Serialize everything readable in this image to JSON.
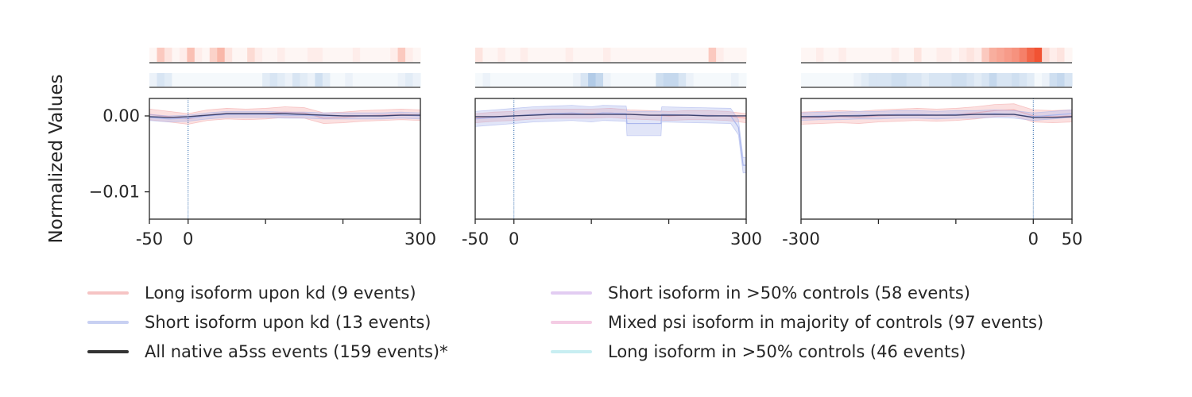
{
  "chart_data": {
    "type": "line",
    "ylabel": "Normalized Values",
    "y_tick_labels": [
      "0.00",
      "−0.01"
    ],
    "y_ticks": [
      0.0,
      -0.01
    ],
    "ylim": [
      -0.0136,
      0.0023
    ],
    "panels": [
      {
        "xlim": [
          -50,
          300
        ],
        "x_tick_labels": [
          "-50",
          "0",
          "300"
        ],
        "x_ticks_labeled": [
          -50,
          0,
          300
        ],
        "x_ticks_minor": [
          100,
          200
        ],
        "vline_x": 0,
        "heatmap_top": [
          0.05,
          0.3,
          0.15,
          0.05,
          0.1,
          0.35,
          0.1,
          0.05,
          0.25,
          0.4,
          0.15,
          0.05,
          0.05,
          0.2,
          0.1,
          0.05,
          0.05,
          0.1,
          0.05,
          0.05,
          0.05,
          0.1,
          0.1,
          0.05,
          0.05,
          0.05,
          0.05,
          0.1,
          0.05,
          0.05,
          0.05,
          0.05,
          0.1,
          0.3,
          0.1,
          0.05
        ],
        "heatmap_bottom": [
          0.1,
          0.2,
          0.15,
          0.05,
          0.05,
          0.05,
          0.05,
          0.05,
          0.05,
          0.05,
          0.05,
          0.05,
          0.05,
          0.05,
          0.05,
          0.15,
          0.2,
          0.15,
          0.1,
          0.2,
          0.15,
          0.1,
          0.25,
          0.15,
          0.05,
          0.05,
          0.1,
          0.05,
          0.05,
          0.05,
          0.05,
          0.05,
          0.05,
          0.1,
          0.15,
          0.1
        ],
        "series": [
          {
            "name": "Long isoform upon kd (9 events)",
            "x": [
              -50,
              -25,
              0,
              25,
              50,
              75,
              100,
              125,
              150,
              175,
              200,
              225,
              250,
              275,
              300
            ],
            "y": [
              0.0002,
              -0.0001,
              -0.0004,
              0.0001,
              0.0003,
              0.0002,
              0.0003,
              0.0005,
              0.0004,
              -0.0003,
              -0.0002,
              0.0,
              0.0001,
              0.0002,
              0.0001
            ],
            "band": 0.0007
          },
          {
            "name": "Short isoform upon kd (13 events)",
            "x": [
              -50,
              -25,
              0,
              25,
              50,
              75,
              100,
              125,
              150,
              175,
              200,
              225,
              250,
              275,
              300
            ],
            "y": [
              -0.0002,
              -0.0004,
              -0.0003,
              0.0,
              0.0002,
              0.0002,
              0.0002,
              0.0001,
              0.0001,
              0.0,
              0.0,
              0.0,
              0.0,
              0.0001,
              0.0
            ],
            "band": 0.0004
          },
          {
            "name": "All native a5ss events (159 events)*",
            "x": [
              -50,
              -25,
              0,
              25,
              50,
              75,
              100,
              125,
              150,
              175,
              200,
              225,
              250,
              275,
              300
            ],
            "y": [
              -0.0001,
              -0.0002,
              -0.0001,
              0.0001,
              0.0003,
              0.0003,
              0.0003,
              0.0003,
              0.0002,
              0.0001,
              0.0,
              0.0,
              0.0,
              0.0001,
              0.0001
            ],
            "band": 0.0
          }
        ]
      },
      {
        "xlim": [
          -50,
          300
        ],
        "x_tick_labels": [
          "-50",
          "0",
          "300"
        ],
        "x_ticks_labeled": [
          -50,
          0,
          300
        ],
        "x_ticks_minor": [
          100,
          200
        ],
        "vline_x": 0,
        "heatmap_top": [
          0.15,
          0.05,
          0.05,
          0.1,
          0.05,
          0.05,
          0.1,
          0.05,
          0.05,
          0.05,
          0.05,
          0.05,
          0.1,
          0.05,
          0.05,
          0.05,
          0.05,
          0.1,
          0.05,
          0.05,
          0.05,
          0.05,
          0.05,
          0.05,
          0.05,
          0.05,
          0.05,
          0.05,
          0.05,
          0.05,
          0.05,
          0.3,
          0.1,
          0.05,
          0.05,
          0.05
        ],
        "heatmap_bottom": [
          0.05,
          0.1,
          0.05,
          0.05,
          0.05,
          0.05,
          0.05,
          0.05,
          0.05,
          0.05,
          0.05,
          0.05,
          0.05,
          0.1,
          0.2,
          0.4,
          0.3,
          0.1,
          0.05,
          0.05,
          0.05,
          0.05,
          0.05,
          0.05,
          0.25,
          0.3,
          0.3,
          0.2,
          0.1,
          0.05,
          0.05,
          0.05,
          0.05,
          0.05,
          0.1,
          0.05
        ],
        "series": [
          {
            "name": "Long isoform upon kd (9 events)",
            "x": [
              -50,
              -25,
              0,
              25,
              50,
              75,
              100,
              125,
              150,
              175,
              200,
              225,
              250,
              275,
              300
            ],
            "y": [
              -0.0003,
              -0.0001,
              0.0,
              0.0002,
              0.0003,
              0.0003,
              0.0003,
              0.0004,
              0.0002,
              0.0001,
              0.0,
              0.0001,
              0.0001,
              0.0,
              -0.0003
            ],
            "band": 0.0006
          },
          {
            "name": "Short isoform upon kd (13 events)",
            "x": [
              -50,
              -25,
              0,
              25,
              50,
              75,
              100,
              115,
              145,
              146,
              190,
              191,
              235,
              280,
              290,
              296,
              300
            ],
            "y": [
              -0.0004,
              -0.0002,
              0.0,
              0.0002,
              0.0003,
              0.0004,
              0.0002,
              0.0004,
              0.0003,
              -0.001,
              -0.001,
              0.0002,
              0.0001,
              0.0,
              -0.0015,
              -0.0065,
              -0.0065
            ],
            "band": 0.001
          },
          {
            "name": "All native a5ss events (159 events)*",
            "x": [
              -50,
              -25,
              0,
              25,
              50,
              75,
              100,
              125,
              150,
              175,
              200,
              225,
              250,
              275,
              300
            ],
            "y": [
              -0.0001,
              -0.0001,
              0.0,
              0.0001,
              0.0002,
              0.0002,
              0.0002,
              0.0002,
              0.0002,
              0.0001,
              0.0001,
              0.0001,
              0.0,
              0.0,
              0.0
            ],
            "band": 0.0
          }
        ]
      },
      {
        "xlim": [
          -300,
          50
        ],
        "x_tick_labels": [
          "-300",
          "0",
          "50"
        ],
        "x_ticks_labeled": [
          -300,
          0,
          50
        ],
        "x_ticks_minor": [
          -200,
          -100
        ],
        "vline_x": 0,
        "heatmap_top": [
          0.05,
          0.05,
          0.1,
          0.05,
          0.05,
          0.1,
          0.05,
          0.05,
          0.05,
          0.05,
          0.05,
          0.05,
          0.1,
          0.05,
          0.05,
          0.15,
          0.05,
          0.05,
          0.1,
          0.1,
          0.05,
          0.1,
          0.15,
          0.1,
          0.3,
          0.45,
          0.5,
          0.55,
          0.6,
          0.7,
          0.85,
          0.95,
          0.2,
          0.1,
          0.15,
          0.05
        ],
        "heatmap_bottom": [
          0.05,
          0.05,
          0.05,
          0.05,
          0.05,
          0.05,
          0.05,
          0.1,
          0.15,
          0.2,
          0.2,
          0.2,
          0.25,
          0.25,
          0.2,
          0.2,
          0.15,
          0.2,
          0.2,
          0.2,
          0.25,
          0.25,
          0.2,
          0.15,
          0.2,
          0.3,
          0.2,
          0.2,
          0.25,
          0.2,
          0.15,
          0.05,
          0.1,
          0.25,
          0.3,
          0.2
        ],
        "series": [
          {
            "name": "Long isoform upon kd (9 events)",
            "x": [
              -300,
              -275,
              -250,
              -225,
              -200,
              -175,
              -150,
              -125,
              -100,
              -75,
              -50,
              -25,
              0,
              25,
              50
            ],
            "y": [
              -0.0003,
              -0.0002,
              -0.0001,
              -0.0002,
              0.0,
              0.0001,
              0.0002,
              0.0001,
              0.0002,
              0.0004,
              0.0007,
              0.0008,
              0.0,
              -0.0001,
              0.0
            ],
            "band": 0.0008
          },
          {
            "name": "Short isoform upon kd (13 events)",
            "x": [
              -300,
              -275,
              -250,
              -225,
              -200,
              -175,
              -150,
              -125,
              -100,
              -75,
              -50,
              -25,
              0,
              25,
              50
            ],
            "y": [
              -0.0001,
              0.0,
              0.0,
              0.0001,
              0.0001,
              0.0002,
              0.0002,
              0.0001,
              0.0002,
              0.0002,
              0.0003,
              0.0002,
              -0.0001,
              0.0001,
              0.0003
            ],
            "band": 0.0005
          },
          {
            "name": "All native a5ss events (159 events)*",
            "x": [
              -300,
              -275,
              -250,
              -225,
              -200,
              -175,
              -150,
              -125,
              -100,
              -75,
              -50,
              -25,
              0,
              25,
              50
            ],
            "y": [
              -0.0001,
              -0.0001,
              0.0,
              0.0,
              0.0001,
              0.0001,
              0.0001,
              0.0001,
              0.0001,
              0.0002,
              0.0002,
              0.0002,
              -0.0002,
              -0.0002,
              -0.0001
            ],
            "band": 0.0
          }
        ]
      }
    ],
    "colors": {
      "long_kd": "#f4a6a6",
      "short_kd": "#a8b4ec",
      "all_native": "#333333",
      "short_ctrl": "#d6b4ec",
      "mixed_ctrl": "#f0a8d4",
      "long_ctrl": "#a8e4ea",
      "heat_top": "#f04a28",
      "heat_bottom": "#3e7ec4",
      "vline": "#1f5fa8"
    },
    "legend": [
      {
        "label": "Long isoform upon kd (9 events)",
        "color": "#f6c4c4"
      },
      {
        "label": "Short isoform upon kd (13 events)",
        "color": "#c8d0f2"
      },
      {
        "label": "All native a5ss events (159 events)*",
        "color": "#333333"
      },
      {
        "label": "Short isoform in >50% controls (58 events)",
        "color": "#e2ccf2"
      },
      {
        "label": "Mixed psi isoform in majority of controls (97 events)",
        "color": "#f4cce4"
      },
      {
        "label": "Long isoform in >50% controls (46 events)",
        "color": "#c8eef2"
      }
    ]
  }
}
